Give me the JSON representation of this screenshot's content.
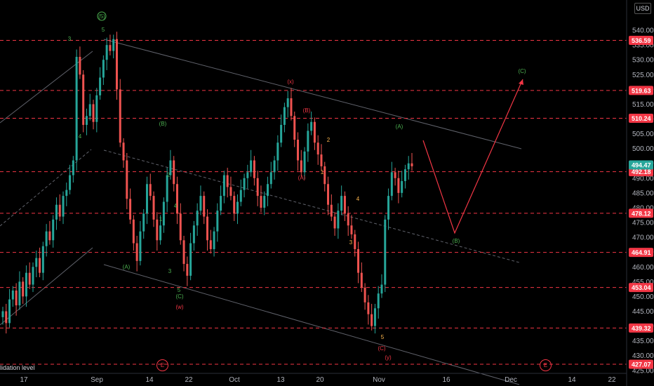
{
  "currency_label": "USD",
  "liquidation_label": "lidation level",
  "event_marker": "E",
  "chart_data": {
    "type": "candlestick",
    "x_tick_labels": [
      "17",
      "Sep",
      "14",
      "22",
      "Oct",
      "13",
      "20",
      "Nov",
      "16",
      "Dec",
      "14",
      "22"
    ],
    "y_ticks": [
      425,
      430,
      435,
      440,
      445,
      450,
      455,
      460,
      465,
      470,
      475,
      480,
      485,
      490,
      495,
      500,
      505,
      510,
      515,
      520,
      525,
      530,
      535,
      540
    ],
    "ylim": [
      424,
      545
    ],
    "current_price": "494.47",
    "price_levels": [
      "536.59",
      "519.63",
      "510.24",
      "492.18",
      "478.12",
      "464.91",
      "453.04",
      "439.32",
      "427.07"
    ],
    "close_prices": [
      445,
      441,
      449,
      452,
      447,
      455,
      450,
      458,
      454,
      460,
      463,
      458,
      467,
      472,
      469,
      476,
      481,
      477,
      484,
      486,
      491,
      496,
      531,
      525,
      508,
      511,
      515,
      509,
      518,
      524,
      530,
      535,
      533,
      537,
      520,
      502,
      496,
      483,
      476,
      468,
      462,
      472,
      478,
      488,
      484,
      476,
      469,
      474,
      482,
      491,
      496,
      488,
      478,
      469,
      461,
      457,
      468,
      474,
      479,
      484,
      477,
      469,
      466,
      472,
      479,
      484,
      491,
      487,
      484,
      478,
      482,
      486,
      490,
      492,
      496,
      490,
      484,
      480,
      484,
      488,
      492,
      496,
      502,
      508,
      514,
      517,
      511,
      503,
      496,
      492,
      499,
      506,
      509,
      502,
      498,
      494,
      488,
      481,
      477,
      473,
      479,
      484,
      478,
      474,
      471,
      466,
      458,
      453,
      448,
      444,
      440,
      446,
      451,
      454,
      476,
      484,
      492,
      490,
      485,
      489,
      493,
      495,
      494
    ],
    "wave_labels": [
      {
        "text": "(5)",
        "color": "green"
      },
      {
        "text": "5",
        "color": "green"
      },
      {
        "text": "3",
        "color": "green"
      },
      {
        "text": "4",
        "color": "green"
      },
      {
        "text": "(B)",
        "color": "green"
      },
      {
        "text": "2",
        "color": "green"
      },
      {
        "text": "4",
        "color": "green"
      },
      {
        "text": "1",
        "color": "green"
      },
      {
        "text": "(A)",
        "color": "green"
      },
      {
        "text": "3",
        "color": "green"
      },
      {
        "text": "5",
        "color": "green"
      },
      {
        "text": "(C)",
        "color": "green"
      },
      {
        "text": "(w)",
        "color": "red"
      },
      {
        "text": "(x)",
        "color": "red"
      },
      {
        "text": "(B)",
        "color": "red"
      },
      {
        "text": "(A)",
        "color": "red"
      },
      {
        "text": "2",
        "color": "orange"
      },
      {
        "text": "1",
        "color": "orange"
      },
      {
        "text": "4",
        "color": "orange"
      },
      {
        "text": "3",
        "color": "orange"
      },
      {
        "text": "5",
        "color": "orange"
      },
      {
        "text": "(C)",
        "color": "red"
      },
      {
        "text": "(y)",
        "color": "red"
      },
      {
        "text": "(A)",
        "color": "green"
      },
      {
        "text": "(B)",
        "color": "green"
      },
      {
        "text": "(C)",
        "color": "green"
      }
    ],
    "colors": {
      "up": "#26a69a",
      "down": "#ef5350",
      "level_line": "#f23645",
      "channel": "#787b86",
      "background": "#000000"
    }
  }
}
